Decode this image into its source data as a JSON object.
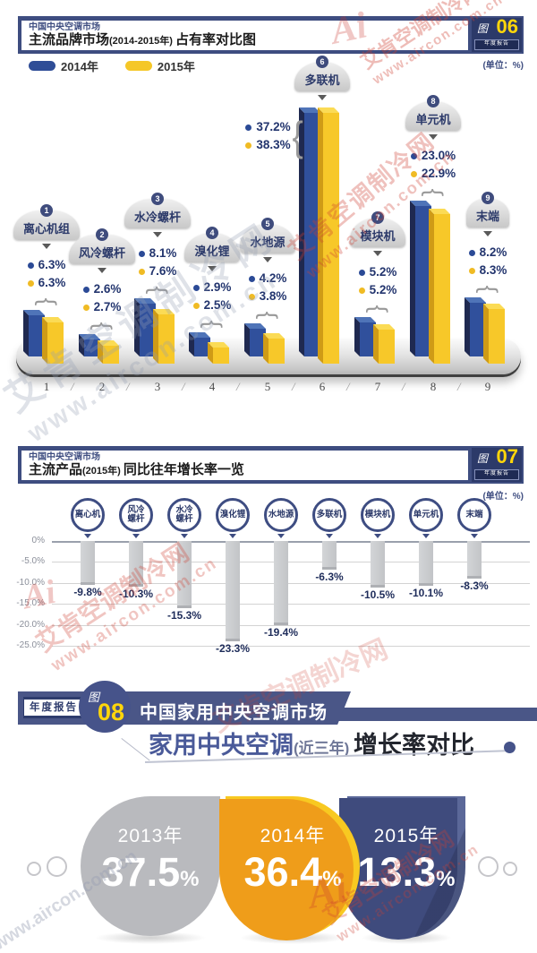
{
  "watermark": {
    "brand": "艾肯空调制冷网",
    "url": "www.aircon.com.cn",
    "logo": "Ai"
  },
  "chart06": {
    "header": {
      "kicker": "中国中央空调市场",
      "title_main": "主流品牌市场",
      "title_paren": "(2014-2015年) ",
      "title_rest": "占有率对比图",
      "badge_fig": "图",
      "badge_num": "06",
      "badge_sub": "年度报告",
      "unit": "(单位：%)"
    },
    "legend": [
      {
        "label": "2014年",
        "color": "#2f4d97"
      },
      {
        "label": "2015年",
        "color": "#f5c728"
      }
    ]
  },
  "chart07": {
    "header": {
      "kicker": "中国中央空调市场",
      "title_main": "主流产品",
      "title_paren": "(2015年) ",
      "title_rest": "同比往年增长率一览",
      "badge_fig": "图",
      "badge_num": "07",
      "badge_sub": "年度报告",
      "unit": "(单位：%)"
    }
  },
  "section08": {
    "tag": "年度报告",
    "fig": "图",
    "num": "08",
    "line1": "中国家用中央空调市场",
    "line2_strong": "家用中央空调",
    "line2_paren": "(近三年) ",
    "line2_rest": "增长率对比"
  },
  "chart_data": [
    {
      "type": "bar",
      "title": "主流品牌市场(2014-2015年)占有率对比图",
      "unit": "%",
      "categories": [
        "离心机组",
        "风冷螺杆",
        "水冷螺杆",
        "溴化锂",
        "水地源",
        "多联机",
        "模块机",
        "单元机",
        "末端"
      ],
      "series": [
        {
          "name": "2014年",
          "color": "#2f4d97",
          "values": [
            6.3,
            2.6,
            8.1,
            2.9,
            4.2,
            37.2,
            5.2,
            23.0,
            8.2
          ]
        },
        {
          "name": "2015年",
          "color": "#f5c728",
          "values": [
            6.3,
            2.7,
            7.6,
            2.5,
            3.8,
            38.3,
            5.2,
            22.9,
            8.3
          ]
        }
      ],
      "x_ticks": [
        "1",
        "2",
        "3",
        "4",
        "5",
        "6",
        "7",
        "8",
        "9"
      ]
    },
    {
      "type": "bar",
      "title": "主流产品(2015年)同比往年增长率一览",
      "unit": "%",
      "categories": [
        "离心机",
        "风冷螺杆",
        "水冷螺杆",
        "溴化锂",
        "水地源",
        "多联机",
        "模块机",
        "单元机",
        "末端"
      ],
      "values": [
        -9.8,
        -10.3,
        -15.3,
        -23.3,
        -19.4,
        -6.3,
        -10.5,
        -10.1,
        -8.3
      ],
      "y_ticks": [
        "0%",
        "-5.0%",
        "-10.0%",
        "-15.0%",
        "-20.0%",
        "-25.0%"
      ],
      "ylim": [
        -25,
        0
      ],
      "grid": true
    },
    {
      "type": "bar",
      "title": "家用中央空调(近三年)增长率对比",
      "unit": "%",
      "categories": [
        "2013年",
        "2014年",
        "2015年"
      ],
      "values": [
        37.5,
        36.4,
        13.3
      ],
      "colors": [
        "#b9babe",
        "#f8c921",
        "#5b6899"
      ]
    }
  ]
}
